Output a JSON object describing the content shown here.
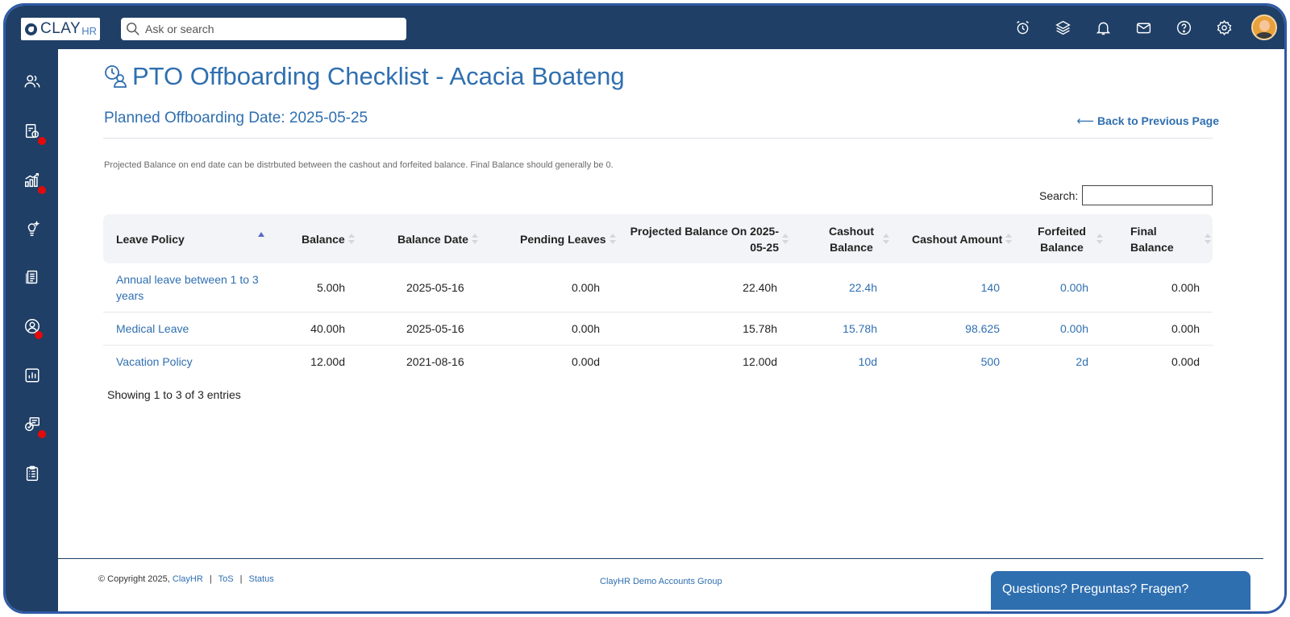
{
  "brand": {
    "logo_text": "CLAY",
    "logo_sub": "HR"
  },
  "header": {
    "search_placeholder": "Ask or search"
  },
  "page": {
    "title": "PTO Offboarding Checklist - Acacia Boateng",
    "offboarding_date_label": "Planned Offboarding Date: 2025-05-25",
    "back_link": "Back to Previous Page",
    "note": "Projected Balance on end date can be distrbuted between the cashout and forfeited balance. Final Balance should generally be 0.",
    "search_label": "Search:"
  },
  "table": {
    "columns": [
      "Leave Policy",
      "Balance",
      "Balance Date",
      "Pending Leaves",
      "Projected Balance On  2025-05-25",
      "Cashout Balance",
      "Cashout Amount",
      "Forfeited Balance",
      "Final Balance"
    ],
    "rows": [
      {
        "policy": "Annual leave between 1 to 3 years",
        "balance": "5.00h",
        "balance_date": "2025-05-16",
        "pending": "0.00h",
        "projected": "22.40h",
        "cashout_balance": "22.4h",
        "cashout_amount": "140",
        "forfeited": "0.00h",
        "final": "0.00h"
      },
      {
        "policy": "Medical Leave",
        "balance": "40.00h",
        "balance_date": "2025-05-16",
        "pending": "0.00h",
        "projected": "15.78h",
        "cashout_balance": "15.78h",
        "cashout_amount": "98.625",
        "forfeited": "0.00h",
        "final": "0.00h"
      },
      {
        "policy": "Vacation Policy",
        "balance": "12.00d",
        "balance_date": "2021-08-16",
        "pending": "0.00d",
        "projected": "12.00d",
        "cashout_balance": "10d",
        "cashout_amount": "500",
        "forfeited": "2d",
        "final": "0.00d"
      }
    ],
    "showing": "Showing 1 to 3 of 3 entries"
  },
  "footer": {
    "copyright": "© Copyright 2025,",
    "company_link": "ClayHR",
    "tos": "ToS",
    "status": "Status",
    "group": "ClayHR Demo Accounts Group",
    "help": "Questions? Preguntas? Fragen?"
  },
  "colors": {
    "nav_bg": "#1f3f66",
    "accent": "#2f6fb0",
    "notification_dot": "#e30a0a"
  }
}
